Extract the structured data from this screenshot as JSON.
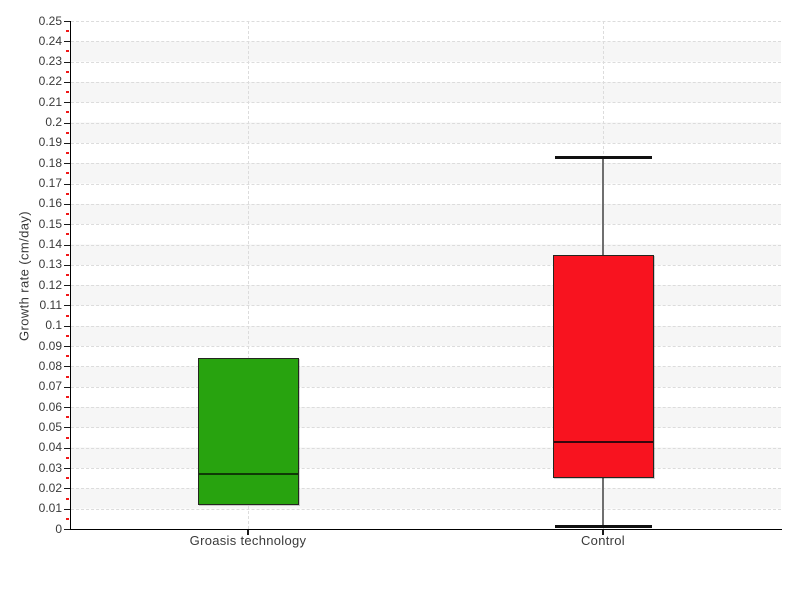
{
  "chart_data": {
    "type": "boxplot",
    "title": "",
    "xlabel": "",
    "ylabel": "Growth rate (cm/day)",
    "ylim": [
      0,
      0.25
    ],
    "y_tick_step": 0.01,
    "y_minor_tick_step": 0.005,
    "grid": {
      "horizontal": "dashed",
      "vertical_at_categories": "dashed",
      "striped_bands": true
    },
    "legend": "none",
    "categories": [
      "Groasis technology",
      "Control"
    ],
    "series": [
      {
        "category": "Groasis technology",
        "q1": 0.012,
        "median": 0.027,
        "q3": 0.084,
        "whisker_low": null,
        "whisker_high": null,
        "fill": "#28a30f",
        "median_color": "#0f3a06"
      },
      {
        "category": "Control",
        "q1": 0.025,
        "median": 0.043,
        "q3": 0.135,
        "whisker_low": 0.001,
        "whisker_high": 0.183,
        "fill": "#f8131f",
        "median_color": "#3a060e"
      }
    ],
    "colors": {
      "band_stripe": "#f6f6f6",
      "gridline": "#dcdcdc",
      "axis": "#000000",
      "major_tick": "#1a1a1a",
      "minor_tick": "#f01818",
      "whisker_line": "#6f6f6f",
      "whisker_cap": "#101010",
      "text": "#3a3a3a"
    }
  }
}
